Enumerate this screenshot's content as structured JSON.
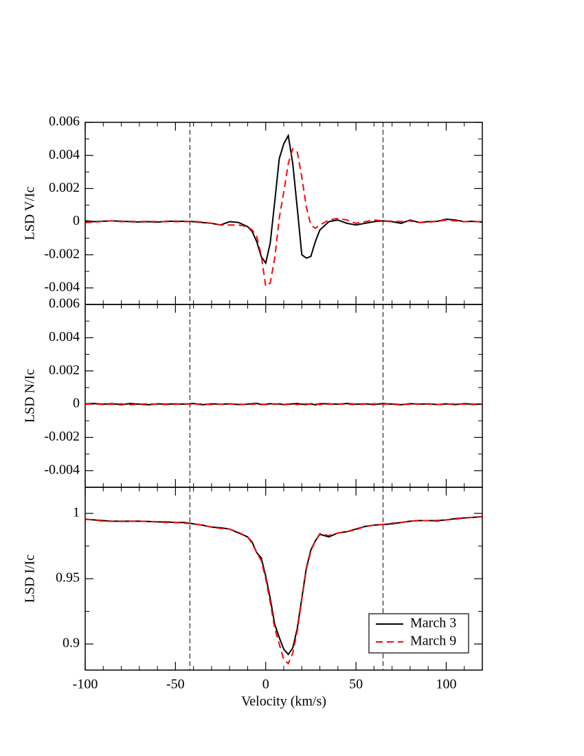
{
  "chart_data": [
    {
      "type": "line",
      "ylabel": "LSD V/Ic",
      "x": [
        -100,
        -95,
        -90,
        -85,
        -80,
        -75,
        -70,
        -65,
        -60,
        -55,
        -50,
        -45,
        -40,
        -35,
        -30,
        -25,
        -20,
        -15,
        -10,
        -7.5,
        -5,
        -2.5,
        0,
        2.5,
        5,
        7.5,
        10,
        12.5,
        15,
        17.5,
        20,
        22.5,
        25,
        27.5,
        30,
        35,
        40,
        45,
        50,
        55,
        60,
        65,
        70,
        75,
        80,
        85,
        90,
        95,
        100,
        105,
        110,
        115,
        120
      ],
      "series": [
        {
          "name": "March 3",
          "color": "#000000",
          "style": "solid",
          "values": [
            5e-05,
            0,
            3e-05,
            5e-05,
            3e-05,
            0,
            -2e-05,
            0,
            -3e-05,
            2e-05,
            3e-05,
            2e-05,
            0,
            -5e-05,
            -0.0001,
            -0.0002,
            0,
            -5e-05,
            -0.0003,
            -0.0006,
            -0.0012,
            -0.0021,
            -0.0025,
            -0.0013,
            0.0012,
            0.0038,
            0.0047,
            0.0052,
            0.0035,
            0.0008,
            -0.002,
            -0.0022,
            -0.0021,
            -0.0012,
            -0.0005,
            0,
            0.0001,
            -0.0001,
            -0.0002,
            -0.0001,
            0,
            5e-05,
            0,
            -0.0001,
            0.0001,
            -5e-05,
            0,
            2e-05,
            0.00015,
            0.0001,
            0,
            2e-05,
            -2e-05
          ]
        },
        {
          "name": "March 9",
          "color": "#ff0000",
          "style": "dashed",
          "values": [
            -5e-05,
            -3e-05,
            3e-05,
            5e-05,
            0,
            2e-05,
            0,
            2e-05,
            0,
            0,
            0,
            0,
            2e-05,
            -3e-05,
            -0.0001,
            -0.0002,
            -0.0002,
            -0.0002,
            -0.0003,
            -0.0005,
            -0.0009,
            -0.002,
            -0.0039,
            -0.0037,
            -0.0022,
            0.0002,
            0.0018,
            0.0035,
            0.0044,
            0.0042,
            0.0027,
            0.0009,
            -0.0002,
            -0.0004,
            -0.0002,
            0.0001,
            0.0002,
            0.0001,
            -0.0001,
            0,
            0.0001,
            5e-05,
            3e-05,
            0,
            5e-05,
            -5e-05,
            -3e-05,
            2e-05,
            0.0001,
            5e-05,
            0,
            0,
            0
          ]
        }
      ],
      "xlim": [
        -100,
        120
      ],
      "xticks": [
        -100,
        -50,
        0,
        50,
        100
      ],
      "show_xtick_labels": false,
      "ylim": [
        -0.005,
        0.006
      ],
      "yticks": [
        -0.004,
        -0.002,
        0,
        0.002,
        0.004,
        0.006
      ],
      "vlines": [
        -42,
        65
      ]
    },
    {
      "type": "line",
      "ylabel": "LSD N/Ic",
      "x": [
        -100,
        -95,
        -90,
        -85,
        -80,
        -75,
        -70,
        -65,
        -60,
        -55,
        -50,
        -45,
        -40,
        -35,
        -30,
        -25,
        -20,
        -15,
        -10,
        -7.5,
        -5,
        -2.5,
        0,
        2.5,
        5,
        7.5,
        10,
        12.5,
        15,
        17.5,
        20,
        22.5,
        25,
        27.5,
        30,
        35,
        40,
        45,
        50,
        55,
        60,
        65,
        70,
        75,
        80,
        85,
        90,
        95,
        100,
        105,
        110,
        115,
        120
      ],
      "series": [
        {
          "name": "March 3",
          "color": "#000000",
          "style": "solid",
          "values": [
            2e-05,
            4e-05,
            0,
            3e-05,
            -3e-05,
            4e-05,
            0,
            -3e-05,
            2e-05,
            0,
            2e-05,
            0,
            4e-05,
            -3e-05,
            2e-05,
            0,
            2e-05,
            -2e-05,
            0,
            3e-05,
            5e-05,
            -2e-05,
            0,
            3e-05,
            0,
            2e-05,
            -3e-05,
            0,
            2e-05,
            4e-05,
            0,
            -2e-05,
            3e-05,
            -4e-05,
            3e-05,
            2e-05,
            0,
            4e-05,
            0,
            2e-05,
            -2e-05,
            4e-05,
            0,
            -3e-05,
            3e-05,
            0,
            2e-05,
            -2e-05,
            2e-05,
            -2e-05,
            3e-05,
            0,
            0
          ]
        },
        {
          "name": "March 9",
          "color": "#ff0000",
          "style": "dashed",
          "values": [
            0,
            2e-05,
            -2e-05,
            0,
            2e-05,
            -3e-05,
            0,
            2e-05,
            0,
            -2e-05,
            0,
            2e-05,
            0,
            2e-05,
            -2e-05,
            0,
            2e-05,
            0,
            -2e-05,
            0,
            2e-05,
            0,
            -2e-05,
            0,
            2e-05,
            0,
            -2e-05,
            2e-05,
            0,
            -2e-05,
            0,
            2e-05,
            0,
            2e-05,
            -2e-05,
            0,
            2e-05,
            0,
            -2e-05,
            0,
            2e-05,
            0,
            2e-05,
            -2e-05,
            0,
            2e-05,
            0,
            -2e-05,
            0,
            2e-05,
            0,
            -2e-05,
            0
          ]
        }
      ],
      "xlim": [
        -100,
        120
      ],
      "xticks": [
        -100,
        -50,
        0,
        50,
        100
      ],
      "show_xtick_labels": false,
      "ylim": [
        -0.005,
        0.006
      ],
      "yticks": [
        -0.004,
        -0.002,
        0,
        0.002,
        0.004,
        0.006
      ],
      "vlines": [
        -42,
        65
      ]
    },
    {
      "type": "line",
      "ylabel": "LSD I/Ic",
      "xlabel": "Velocity (km/s)",
      "x": [
        -100,
        -95,
        -90,
        -85,
        -80,
        -75,
        -70,
        -65,
        -60,
        -55,
        -50,
        -45,
        -40,
        -35,
        -30,
        -25,
        -20,
        -15,
        -10,
        -7.5,
        -5,
        -2.5,
        0,
        2.5,
        5,
        7.5,
        10,
        12.5,
        15,
        17.5,
        20,
        22.5,
        25,
        27.5,
        30,
        35,
        40,
        45,
        50,
        55,
        60,
        65,
        70,
        75,
        80,
        85,
        90,
        95,
        100,
        105,
        110,
        115,
        120
      ],
      "series": [
        {
          "name": "March 3",
          "color": "#000000",
          "style": "solid",
          "values": [
            0.9955,
            0.995,
            0.9945,
            0.994,
            0.994,
            0.994,
            0.994,
            0.9938,
            0.9935,
            0.9935,
            0.993,
            0.993,
            0.992,
            0.991,
            0.9895,
            0.989,
            0.988,
            0.985,
            0.982,
            0.978,
            0.97,
            0.966,
            0.952,
            0.935,
            0.915,
            0.905,
            0.896,
            0.892,
            0.897,
            0.912,
            0.935,
            0.958,
            0.972,
            0.979,
            0.984,
            0.982,
            0.985,
            0.986,
            0.988,
            0.99,
            0.991,
            0.9915,
            0.992,
            0.993,
            0.994,
            0.9945,
            0.9945,
            0.9945,
            0.995,
            0.996,
            0.9965,
            0.997,
            0.9975
          ]
        },
        {
          "name": "March 9",
          "color": "#ff0000",
          "style": "dashed",
          "values": [
            0.9955,
            0.995,
            0.994,
            0.994,
            0.9938,
            0.994,
            0.994,
            0.9938,
            0.9935,
            0.993,
            0.993,
            0.9925,
            0.992,
            0.991,
            0.9895,
            0.9885,
            0.988,
            0.9855,
            0.982,
            0.977,
            0.97,
            0.964,
            0.95,
            0.932,
            0.912,
            0.9,
            0.888,
            0.885,
            0.893,
            0.91,
            0.934,
            0.957,
            0.971,
            0.979,
            0.9845,
            0.983,
            0.985,
            0.986,
            0.9875,
            0.99,
            0.991,
            0.9915,
            0.9925,
            0.993,
            0.994,
            0.9945,
            0.9945,
            0.994,
            0.995,
            0.9955,
            0.9965,
            0.997,
            0.9975
          ]
        }
      ],
      "xlim": [
        -100,
        120
      ],
      "xticks": [
        -100,
        -50,
        0,
        50,
        100
      ],
      "show_xtick_labels": true,
      "ylim": [
        0.88,
        1.02
      ],
      "yticks": [
        0.9,
        0.95,
        1
      ],
      "vlines": [
        -42,
        65
      ],
      "legend": "lower right"
    }
  ]
}
